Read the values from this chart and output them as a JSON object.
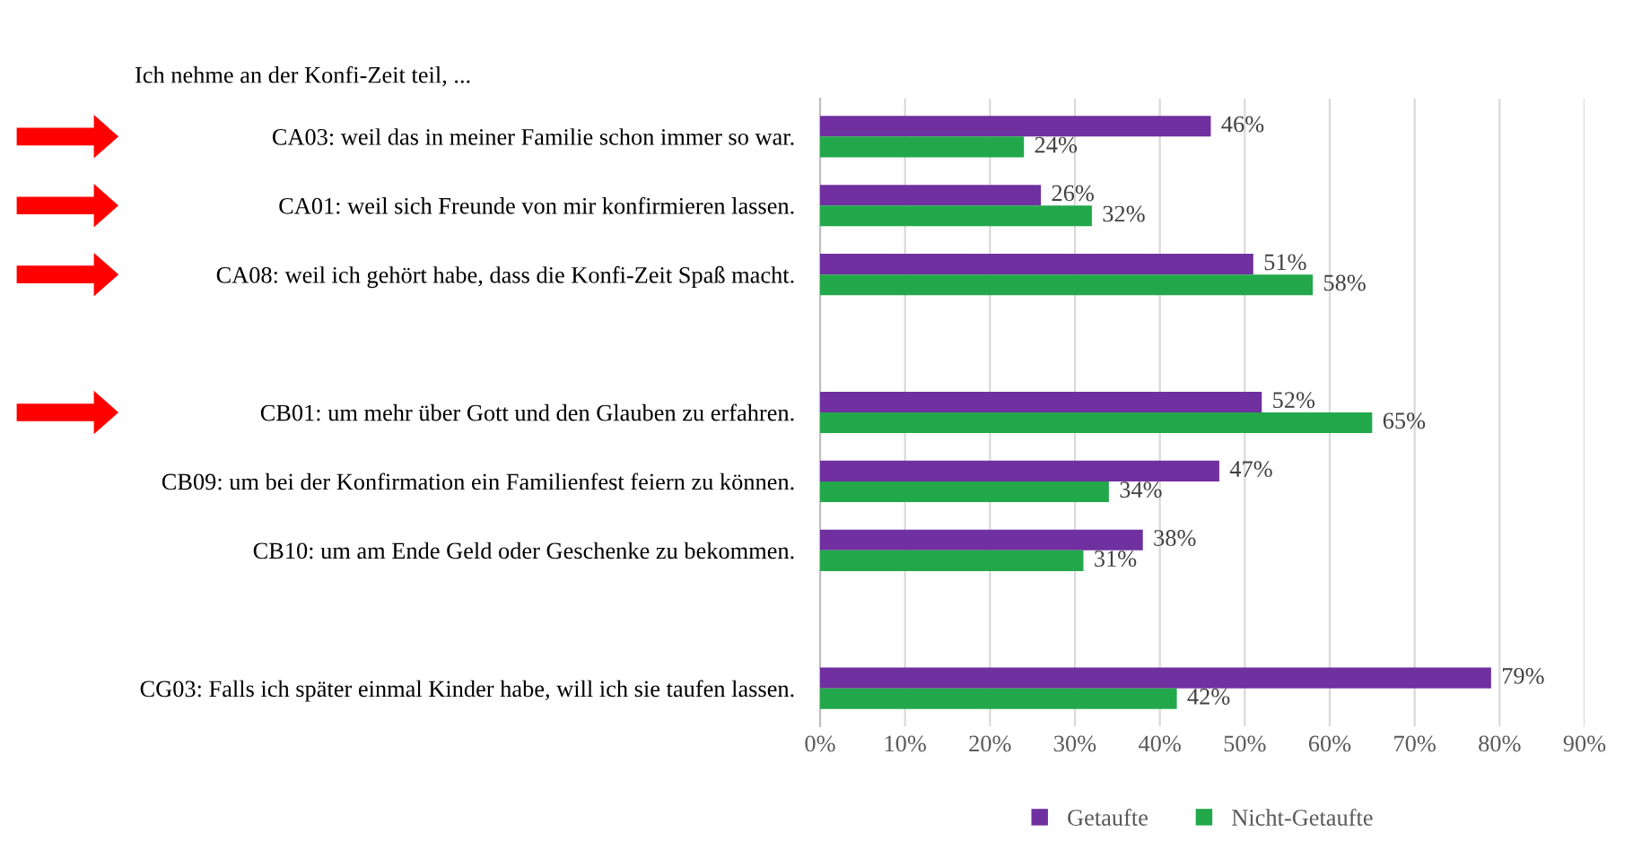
{
  "chart_data": {
    "type": "bar",
    "orientation": "horizontal",
    "title": "Ich nehme an der Konfi-Zeit teil, ...",
    "categories": [
      "CA03: weil das in meiner Familie schon immer so war.",
      "CA01: weil sich Freunde von mir konfirmieren lassen.",
      "CA08: weil ich gehört habe, dass die Konfi-Zeit Spaß macht.",
      null,
      "CB01: um mehr über Gott und den Glauben zu erfahren.",
      "CB09: um bei der Konfirmation ein Familienfest feiern zu können.",
      "CB10: um am Ende Geld oder Geschenke zu bekommen.",
      null,
      "CG03: Falls ich später einmal Kinder habe, will ich sie taufen lassen."
    ],
    "series": [
      {
        "name": "Getaufte",
        "color": "#7030a0",
        "values": [
          46,
          26,
          51,
          null,
          52,
          47,
          38,
          null,
          79
        ],
        "value_labels": [
          "46%",
          "26%",
          "51%",
          null,
          "52%",
          "47%",
          "38%",
          null,
          "79%"
        ]
      },
      {
        "name": "Nicht-Getaufte",
        "color": "#22a84a",
        "values": [
          24,
          32,
          58,
          null,
          65,
          34,
          31,
          null,
          42
        ],
        "value_labels": [
          "24%",
          "32%",
          "58%",
          null,
          "65%",
          "34%",
          "31%",
          null,
          "42%"
        ]
      }
    ],
    "xlim": [
      0,
      90
    ],
    "xticks": [
      {
        "value": 0,
        "label": "0%"
      },
      {
        "value": 10,
        "label": "10%"
      },
      {
        "value": 20,
        "label": "20%"
      },
      {
        "value": 30,
        "label": "30%"
      },
      {
        "value": 40,
        "label": "40%"
      },
      {
        "value": 50,
        "label": "50%"
      },
      {
        "value": 60,
        "label": "60%"
      },
      {
        "value": 70,
        "label": "70%"
      },
      {
        "value": 80,
        "label": "80%"
      },
      {
        "value": 90,
        "label": "90%"
      }
    ],
    "grid": "x",
    "legend": "bottom"
  }
}
